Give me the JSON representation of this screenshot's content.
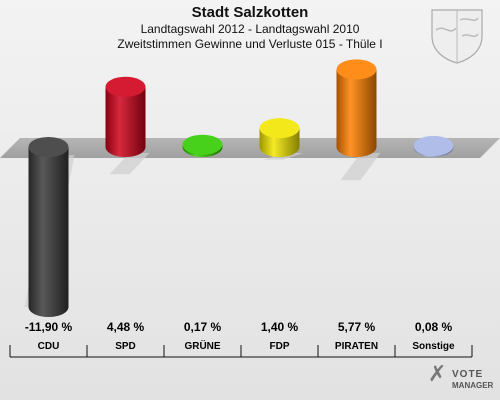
{
  "header": {
    "title": "Stadt Salzkotten",
    "subtitle1": "Landtagswahl 2012 - Landtagswahl 2010",
    "subtitle2": "Zweitstimmen Gewinne und Verluste 015 - Thüle I"
  },
  "logo": {
    "line1": "VOTE",
    "line2": "MANAGER"
  },
  "chart_data": {
    "type": "bar",
    "title": "Stadt Salzkotten",
    "categories": [
      "CDU",
      "SPD",
      "GRÜNE",
      "FDP",
      "PIRATEN",
      "Sonstige"
    ],
    "values": [
      -11.9,
      4.48,
      0.17,
      1.4,
      5.77,
      0.08
    ],
    "value_labels": [
      "-11,90 %",
      "4,48 %",
      "0,17 %",
      "1,40 %",
      "5,77 %",
      "0,08 %"
    ],
    "colors": [
      "#3a3a3a",
      "#d0021b",
      "#33cc00",
      "#f2e600",
      "#ff8000",
      "#a7b6e6"
    ],
    "xlabel": "",
    "ylabel": "",
    "grid": false,
    "legend": "none"
  }
}
